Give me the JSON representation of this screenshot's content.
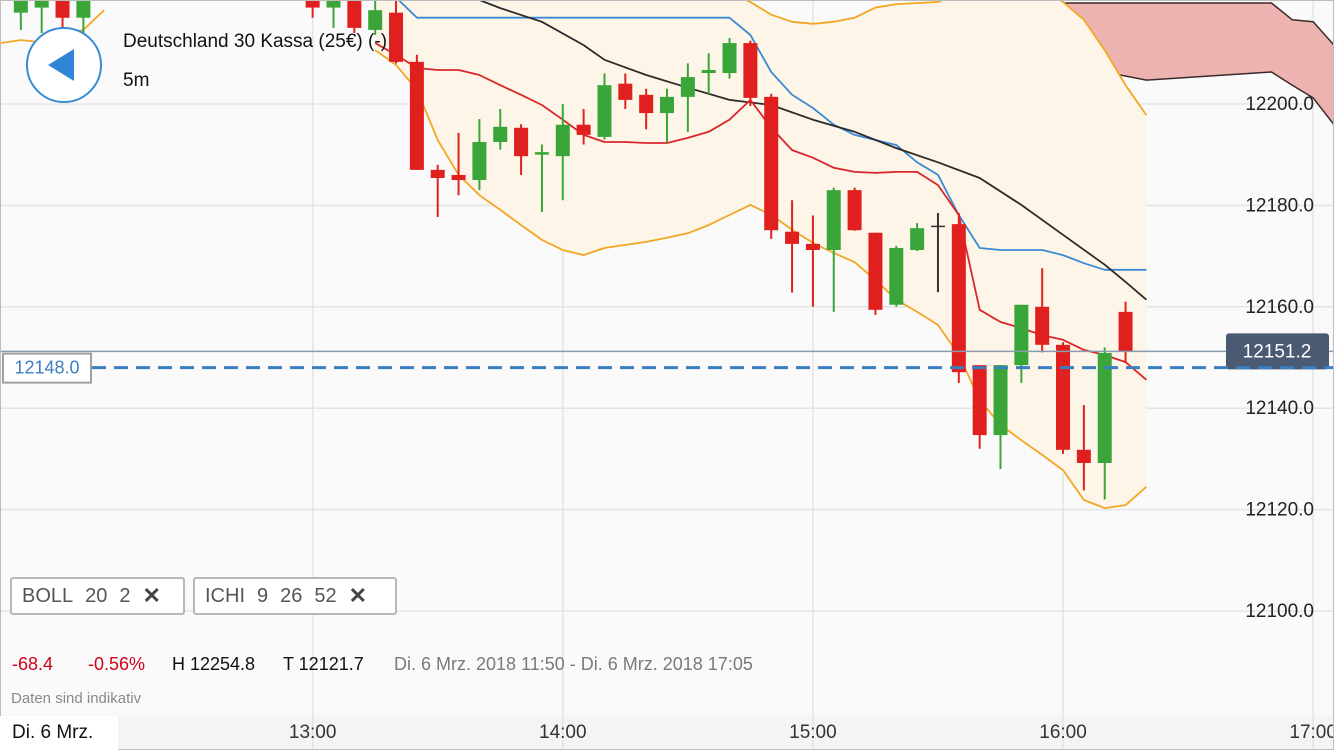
{
  "header": {
    "title": "Deutschland 30 Kassa (25€) (-)",
    "interval": "5m"
  },
  "indicators": [
    {
      "name": "BOLL",
      "params": [
        20,
        2
      ]
    },
    {
      "name": "ICHI",
      "params": [
        9,
        26,
        52
      ]
    }
  ],
  "stats": {
    "change": "-68.4",
    "change_pct": "-0.56%",
    "high": "H 12254.8",
    "low": "T 12121.7",
    "range": "Di. 6 Mrz. 2018 11:50 - Di. 6 Mrz. 2018 17:05"
  },
  "note": "Daten sind indikativ",
  "date_label": "Di. 6 Mrz.",
  "chart_data": {
    "type": "candlestick",
    "x": [
      "11:50",
      "11:55",
      "12:00",
      "12:05",
      "13:00",
      "13:05",
      "13:10",
      "13:15",
      "13:20",
      "13:25",
      "13:30",
      "13:35",
      "13:40",
      "13:45",
      "13:50",
      "13:55",
      "14:00",
      "14:05",
      "14:10",
      "14:15",
      "14:20",
      "14:25",
      "14:30",
      "14:35",
      "14:40",
      "14:45",
      "14:50",
      "14:55",
      "15:00",
      "15:05",
      "15:10",
      "15:15",
      "15:20",
      "15:25",
      "15:30",
      "15:35",
      "15:40",
      "15:45",
      "15:50",
      "15:55",
      "16:00",
      "16:05",
      "16:10",
      "16:15"
    ],
    "open": [
      12218,
      12219,
      12226,
      12217,
      12222,
      12219,
      12225,
      12214.6,
      12218,
      12208.3,
      12187,
      12186,
      12185,
      12192.5,
      12195.3,
      12190,
      12189.7,
      12195.9,
      12193.5,
      12204,
      12201.8,
      12198.2,
      12201.4,
      12206.1,
      12206.1,
      12212,
      12201.4,
      12174.8,
      12172.4,
      12171.2,
      12183,
      12174.6,
      12160.4,
      12171.2,
      12176,
      12176.3,
      12148.5,
      12134.7,
      12148.5,
      12160,
      12152.5,
      12131.8,
      12129.2,
      12159
    ],
    "high": [
      12226,
      12226,
      12228,
      12227,
      12226,
      12224,
      12227,
      12221,
      12222,
      12209.7,
      12188,
      12194.3,
      12197,
      12199,
      12196,
      12192,
      12200,
      12199,
      12206,
      12206,
      12203,
      12203,
      12208,
      12210,
      12213,
      12212.5,
      12202,
      12181,
      12178,
      12183.5,
      12183.5,
      12174.6,
      12172,
      12176.5,
      12178.5,
      12178.5,
      12148.5,
      12148.5,
      12160.4,
      12167.6,
      12153,
      12140.6,
      12152,
      12161
    ],
    "low": [
      12214.6,
      12214,
      12215,
      12214,
      12217,
      12215,
      12214,
      12213.6,
      12208,
      12187,
      12177.7,
      12182,
      12183,
      12191,
      12186,
      12178.7,
      12181,
      12192,
      12193,
      12199,
      12195,
      12192.4,
      12194.5,
      12202,
      12205,
      12199.6,
      12173.4,
      12162.8,
      12160,
      12159,
      12175,
      12158.4,
      12160,
      12171,
      12162.9,
      12145,
      12132,
      12128,
      12145,
      12151,
      12131,
      12123.8,
      12122,
      12149
    ],
    "close": [
      12224,
      12223,
      12217,
      12225,
      12219,
      12221,
      12215,
      12218.5,
      12208.3,
      12187,
      12185.4,
      12185,
      12192.5,
      12195.5,
      12189.7,
      12190.5,
      12195.9,
      12193.9,
      12203.7,
      12200.8,
      12198.2,
      12201.4,
      12205.3,
      12206.7,
      12212,
      12201.2,
      12175.1,
      12172.4,
      12171.2,
      12183,
      12175.1,
      12159.4,
      12171.6,
      12175.5,
      12176,
      12147.1,
      12134.7,
      12148.5,
      12160.4,
      12152.5,
      12131.8,
      12129.2,
      12150.9,
      12151.2
    ],
    "up_color": "#3aa63a",
    "down_color": "#e0201f",
    "flat_color": "#333333",
    "bands": {
      "x": [
        "13:15",
        "13:20",
        "13:25",
        "13:30",
        "13:35",
        "13:40",
        "13:45",
        "13:50",
        "13:55",
        "14:00",
        "14:05",
        "14:10",
        "14:15",
        "14:20",
        "14:25",
        "14:30",
        "14:35",
        "14:40",
        "14:45",
        "14:50",
        "14:55",
        "15:00",
        "15:05",
        "15:10",
        "15:15",
        "15:20",
        "15:25",
        "15:30",
        "15:35",
        "15:40",
        "15:45",
        "15:50",
        "15:55",
        "16:00",
        "16:05",
        "16:10",
        "16:15",
        "16:20"
      ],
      "upper": [
        12226,
        12228,
        12229,
        12230,
        12230,
        12230,
        12230,
        12229,
        12228,
        12228,
        12227,
        12226,
        12226,
        12225,
        12225,
        12224,
        12223,
        12222,
        12220.1,
        12217.6,
        12216.2,
        12215.8,
        12216.2,
        12217,
        12219,
        12219.7,
        12219.9,
        12220.1,
        12222,
        12224,
        12225,
        12225,
        12223,
        12220.1,
        12216.6,
        12210.6,
        12203.7,
        12197.8
      ],
      "middle": [
        12212,
        12209.7,
        12207.1,
        12206.7,
        12206.7,
        12205.7,
        12203.7,
        12201.8,
        12199.8,
        12196.9,
        12193.9,
        12192.5,
        12192.5,
        12192.3,
        12192.3,
        12193.3,
        12194.5,
        12196.9,
        12200.8,
        12195.3,
        12190.9,
        12189.4,
        12187.4,
        12186.6,
        12186.4,
        12186.6,
        12186.6,
        12184,
        12178.1,
        12159.4,
        12157,
        12155.8,
        12154.4,
        12153.5,
        12151.5,
        12150.5,
        12149.1,
        12145.6
      ],
      "lower": [
        12210.6,
        12207.7,
        12202.8,
        12192.9,
        12186,
        12182,
        12179.1,
        12176.1,
        12173.2,
        12171.2,
        12170.2,
        12171.6,
        12172.2,
        12172.8,
        12173.6,
        12174.5,
        12176.1,
        12178.1,
        12180.1,
        12178.1,
        12175.2,
        12172.6,
        12170.6,
        12168.8,
        12165.3,
        12161.4,
        12159,
        12156.4,
        12150.5,
        12141.6,
        12136.7,
        12133.7,
        12130.8,
        12127.8,
        12121.9,
        12120.3,
        12120.9,
        12124.5
      ],
      "color": "#f2a623",
      "middle_color": "#d9262c",
      "fill": "#fdf5e8"
    },
    "lines": [
      {
        "color": "#f2a623",
        "x": [
          "11:45",
          "11:50",
          "11:55",
          "12:00",
          "12:05",
          "12:10"
        ],
        "values": [
          12212,
          12212.6,
          12212.2,
          12213.4,
          12214.6,
          12218.5
        ]
      },
      {
        "color": "#3b8ad3",
        "x": [
          "13:20",
          "13:25",
          "13:30",
          "13:35",
          "13:40",
          "13:45",
          "13:50",
          "13:55",
          "14:00",
          "14:05",
          "14:10",
          "14:15",
          "14:20",
          "14:25",
          "14:30",
          "14:35",
          "14:40",
          "14:45",
          "14:50",
          "14:55",
          "15:00",
          "15:05",
          "15:10",
          "15:15",
          "15:20",
          "15:25",
          "15:30",
          "15:35",
          "15:40",
          "15:45",
          "15:50",
          "15:55",
          "16:00",
          "16:05",
          "16:10",
          "16:15",
          "16:20"
        ],
        "values": [
          12221,
          12217,
          12217,
          12217,
          12217,
          12217,
          12217,
          12217,
          12217,
          12217,
          12217,
          12217,
          12217,
          12217,
          12217,
          12217,
          12217,
          12213.6,
          12206.3,
          12201.8,
          12199.2,
          12195.9,
          12193.9,
          12192.9,
          12191.9,
          12188.5,
          12186,
          12178.1,
          12171.6,
          12171.2,
          12171.2,
          12171.2,
          12170.2,
          12168.6,
          12167.3,
          12167.3,
          12167.3
        ]
      },
      {
        "color": "#2b2b2b",
        "x": [
          "13:40",
          "13:45",
          "13:55",
          "14:05",
          "14:10",
          "14:20",
          "14:30",
          "14:40",
          "14:50",
          "15:00",
          "15:10",
          "15:20",
          "15:30",
          "15:40",
          "15:50",
          "16:00",
          "16:10",
          "16:15",
          "16:20"
        ],
        "values": [
          12220.5,
          12218.9,
          12216.2,
          12211.6,
          12208.7,
          12205.7,
          12203.2,
          12200.8,
          12199.8,
          12196.9,
          12194.5,
          12191.3,
          12188.5,
          12185.4,
          12180.1,
          12174.2,
          12168.3,
          12164.9,
          12161.4
        ]
      }
    ],
    "cloud": {
      "x": [
        "15:35",
        "15:40",
        "15:45",
        "15:50",
        "16:00",
        "16:10",
        "16:20",
        "16:50",
        "16:55",
        "17:00",
        "17:05"
      ],
      "upper": [
        12219.5,
        12216.6,
        12216.2,
        12218.5,
        12219.9,
        12219.9,
        12219.9,
        12219.9,
        12216.6,
        12216.2,
        12211.6
      ],
      "lower": [
        12219.5,
        12216.6,
        12214.6,
        12213.6,
        12211.6,
        12206.3,
        12204.7,
        12206.3,
        12203.7,
        12201.2,
        12195.9
      ],
      "color": "#3a2a2a",
      "fill": "#ecb3b1"
    },
    "last_price": 12151.2,
    "alert": {
      "value": 12148,
      "label": "12148.0"
    },
    "xlim": [
      "11:45",
      "17:05"
    ],
    "xticks": [
      "13:00",
      "14:00",
      "15:00",
      "16:00",
      "17:00"
    ],
    "ylim": [
      12079.5,
      12220.5
    ],
    "yticks": [
      {
        "value": 12100,
        "label": "12100.0"
      },
      {
        "value": 12120,
        "label": "12120.0"
      },
      {
        "value": 12140,
        "label": "12140.0"
      },
      {
        "value": 12160,
        "label": "12160.0"
      },
      {
        "value": 12180,
        "label": "12180.0"
      },
      {
        "value": 12200,
        "label": "12200.0"
      }
    ],
    "grid": true
  }
}
